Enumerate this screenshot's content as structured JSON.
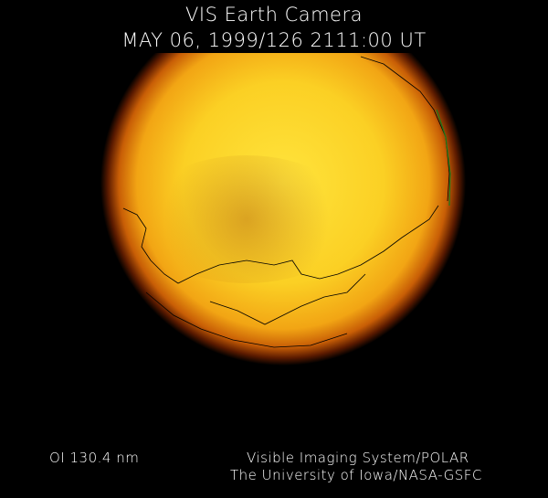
{
  "header": {
    "title": "VIS Earth Camera",
    "datetime": "MAY 06, 1999/126 2111:00 UT"
  },
  "footer": {
    "wavelength": "OI  130.4 nm",
    "instrument": "Visible Imaging System/POLAR",
    "institution": "The University of Iowa/NASA-GSFC"
  },
  "colors": {
    "background": "#000000",
    "disc_core": "#ffe23a",
    "disc_mid": "#f0a010",
    "disc_limb": "#5a1a00",
    "coastline": "#000000",
    "terminator": "#1a7a1a"
  }
}
